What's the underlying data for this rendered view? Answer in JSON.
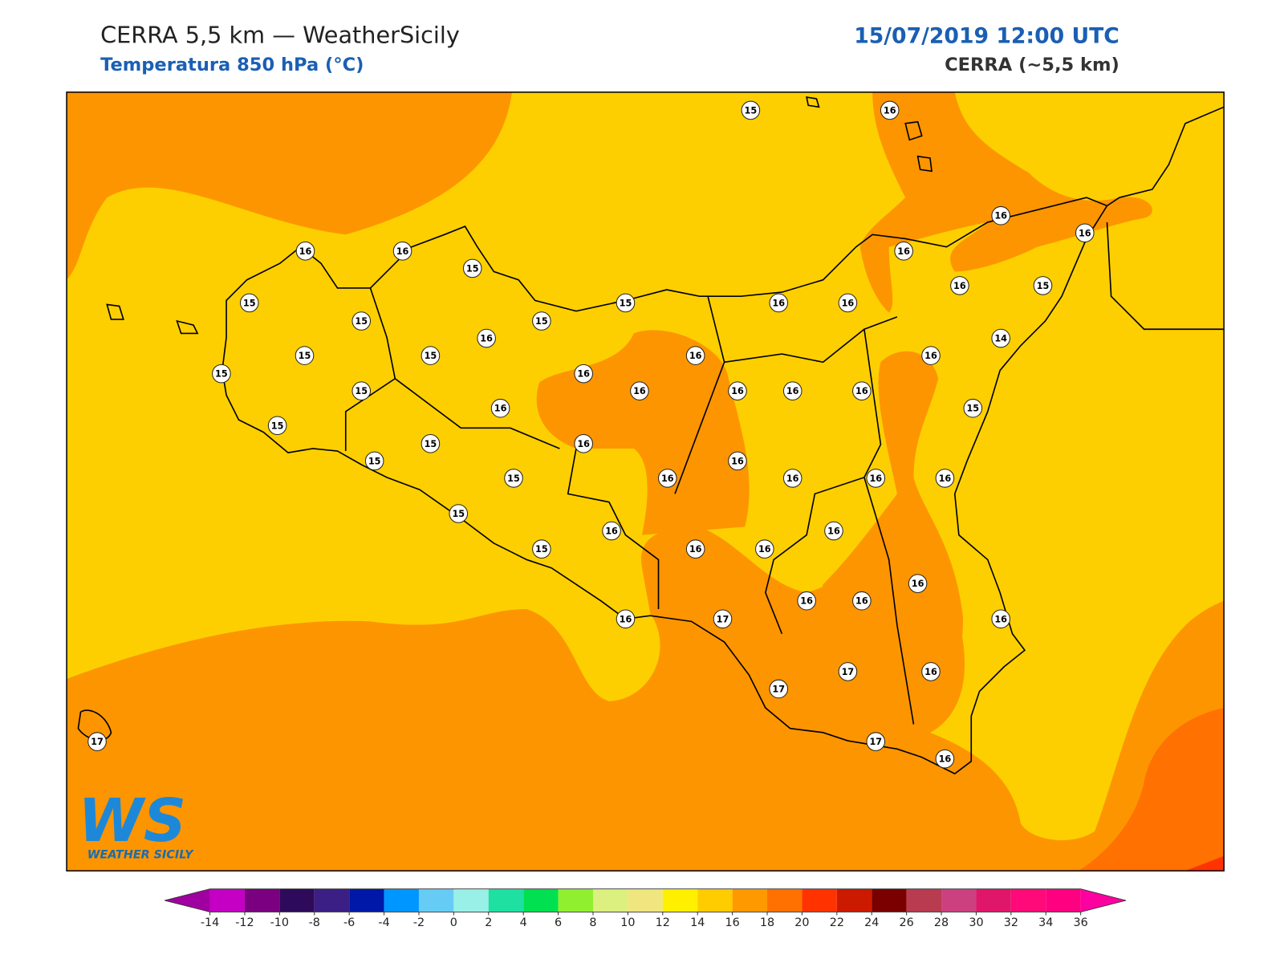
{
  "header": {
    "title": "CERRA 5,5 km — WeatherSicily",
    "subtitle": "Temperatura 850 hPa (°C)",
    "date": "15/07/2019 12:00 UTC",
    "model": "CERRA (~5,5 km)"
  },
  "stations": {
    "values": [
      15,
      16,
      16,
      16,
      15,
      15,
      15,
      15,
      15,
      16,
      16,
      16,
      16,
      16,
      16,
      15,
      14,
      16,
      15,
      15,
      16,
      15,
      16,
      16,
      15,
      16,
      16,
      16,
      16,
      15,
      16,
      15,
      15,
      16,
      15,
      15,
      16,
      16,
      16,
      16,
      16,
      15,
      16,
      16,
      15,
      16,
      16,
      16,
      16,
      16,
      16,
      17,
      16,
      17,
      17,
      16,
      17,
      17,
      16
    ]
  },
  "colorbar": {
    "ticks": [
      -14,
      -12,
      -10,
      -8,
      -6,
      -4,
      -2,
      0,
      2,
      4,
      6,
      8,
      10,
      12,
      14,
      16,
      18,
      20,
      22,
      24,
      26,
      28,
      30,
      32,
      34,
      36
    ],
    "colors": [
      "#c300c3",
      "#7a0080",
      "#2e0a5a",
      "#3b1f85",
      "#0018a8",
      "#0096ff",
      "#66ccf5",
      "#99f0e6",
      "#1ee0a0",
      "#00e050",
      "#90f030",
      "#dcf080",
      "#f0e680",
      "#fff000",
      "#ffcc00",
      "#ff9900",
      "#ff7100",
      "#ff3300",
      "#cc1a00",
      "#7a0000",
      "#b83b50",
      "#cc4080",
      "#e0166a",
      "#ff0a78",
      "#ff0080"
    ],
    "under": "#a000a0",
    "over": "#ff00a0"
  },
  "logo": {
    "mark": "WS",
    "name": "WEATHER SICILY"
  }
}
